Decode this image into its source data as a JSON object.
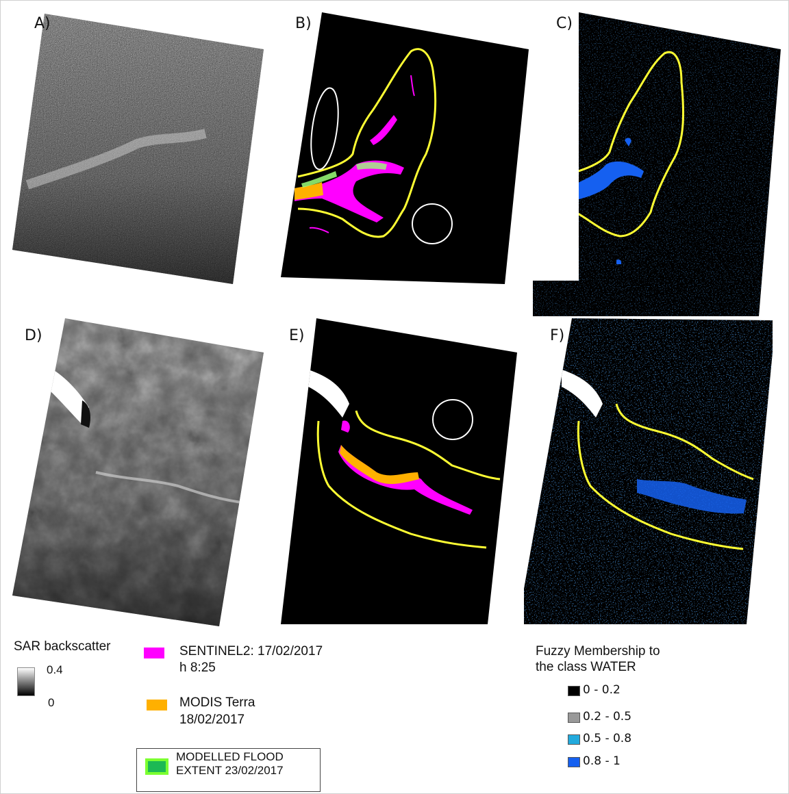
{
  "panels": {
    "a": "A)",
    "b": "B)",
    "c": "C)",
    "d": "D)",
    "e": "E)",
    "f": "F)"
  },
  "legend_sar": {
    "title": "SAR backscatter",
    "max": "0.4",
    "min": "0"
  },
  "legend_flood": {
    "sentinel_line1": "SENTINEL2: 17/02/2017",
    "sentinel_line2": "h 8:25",
    "modis_line1": "MODIS Terra",
    "modis_line2": "18/02/2017",
    "model_line1": "MODELLED FLOOD",
    "model_line2": "EXTENT 23/02/2017"
  },
  "legend_fuzzy": {
    "title_line1": "Fuzzy  Membership  to",
    "title_line2": "the class WATER",
    "classes": [
      "0 - 0.2",
      "0.2 - 0.5",
      "0.5 - 0.8",
      "0.8 - 1"
    ]
  },
  "colors": {
    "sentinel2": "#ff00ff",
    "modis": "#ffb000",
    "modelled": "#1db954",
    "boundary": "#ffff33",
    "fuzzy": [
      "#000000",
      "#999999",
      "#22aadd",
      "#1560f0"
    ]
  }
}
